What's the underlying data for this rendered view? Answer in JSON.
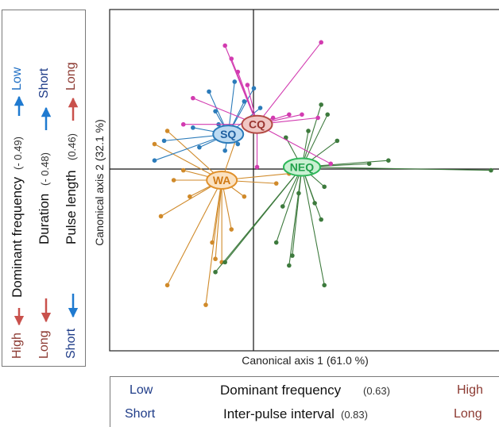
{
  "chart_data": {
    "type": "scatter",
    "title": "",
    "xlabel": "Canonical axis 1 (61.0 %)",
    "ylabel": "Canonical axis 2 (32.1 %)",
    "xlim": [
      -4.6,
      7.6
    ],
    "ylim": [
      -5.9,
      4.5
    ],
    "grid": false,
    "reference_lines": {
      "x": 0,
      "y": 0
    },
    "colors": {
      "SQ": "#2b7bba",
      "CQ": "#d23bb0",
      "WA": "#d08a2a",
      "NEQ": "#3d7a3d"
    },
    "series": [
      {
        "name": "SQ",
        "centroid": [
          -0.9,
          0.7
        ],
        "points": [
          [
            -0.7,
            2.3
          ],
          [
            -1.5,
            2.0
          ],
          [
            -0.4,
            1.7
          ],
          [
            -0.1,
            2.1
          ],
          [
            -1.3,
            1.4
          ],
          [
            -2.0,
            0.9
          ],
          [
            -2.9,
            0.5
          ],
          [
            -3.2,
            -0.1
          ],
          [
            -1.0,
            0.2
          ],
          [
            -0.6,
            0.4
          ],
          [
            -1.2,
            1.0
          ],
          [
            0.1,
            1.5
          ],
          [
            -1.8,
            0.3
          ]
        ]
      },
      {
        "name": "CQ",
        "centroid": [
          0.0,
          1.0
        ],
        "points": [
          [
            -1.0,
            3.4
          ],
          [
            -0.8,
            3.0
          ],
          [
            2.0,
            3.5
          ],
          [
            -0.6,
            2.6
          ],
          [
            -0.3,
            2.2
          ],
          [
            1.9,
            1.2
          ],
          [
            1.0,
            1.3
          ],
          [
            -2.0,
            1.8
          ],
          [
            -2.3,
            1.0
          ],
          [
            1.4,
            1.3
          ],
          [
            0.0,
            -0.3
          ],
          [
            2.3,
            -0.2
          ],
          [
            0.5,
            1.2
          ]
        ]
      },
      {
        "name": "WA",
        "centroid": [
          -1.1,
          -0.7
        ],
        "points": [
          [
            -2.8,
            0.8
          ],
          [
            -3.2,
            0.4
          ],
          [
            -2.3,
            -0.4
          ],
          [
            -2.6,
            -0.7
          ],
          [
            -2.1,
            -1.2
          ],
          [
            -3.0,
            -1.8
          ],
          [
            -2.8,
            -3.9
          ],
          [
            -1.6,
            -4.5
          ],
          [
            -1.3,
            -3.1
          ],
          [
            -1.1,
            -3.2
          ],
          [
            -1.4,
            -2.6
          ],
          [
            -0.8,
            -2.2
          ],
          [
            -0.4,
            -1.2
          ],
          [
            0.6,
            -0.8
          ],
          [
            1.0,
            -0.5
          ],
          [
            -0.6,
            0.7
          ]
        ]
      },
      {
        "name": "NEQ",
        "centroid": [
          1.4,
          -0.3
        ],
        "points": [
          [
            2.0,
            1.6
          ],
          [
            2.2,
            1.3
          ],
          [
            3.5,
            -0.2
          ],
          [
            7.3,
            -0.4
          ],
          [
            4.1,
            -0.1
          ],
          [
            2.5,
            0.5
          ],
          [
            1.6,
            0.8
          ],
          [
            2.1,
            -0.9
          ],
          [
            1.8,
            -1.4
          ],
          [
            2.0,
            -1.9
          ],
          [
            1.3,
            -1.1
          ],
          [
            0.8,
            -1.5
          ],
          [
            0.6,
            -2.6
          ],
          [
            1.1,
            -3.0
          ],
          [
            1.0,
            -3.3
          ],
          [
            -1.3,
            -3.5
          ],
          [
            -1.0,
            -3.2
          ],
          [
            2.1,
            -3.9
          ],
          [
            0.9,
            0.6
          ],
          [
            1.2,
            -0.3
          ]
        ]
      }
    ]
  },
  "left_legend": {
    "rows": [
      {
        "name": "Dominant frequency",
        "coef": "(- 0.49)",
        "low_label": "High",
        "high_label": "Low",
        "low_color": "#8c3a32",
        "high_color": "#1f6fc4"
      },
      {
        "name": "Duration",
        "coef": "(- 0.48)",
        "low_label": "Long",
        "high_label": "Short",
        "low_color": "#8c3a32",
        "high_color": "#1f3c88"
      },
      {
        "name": "Pulse length",
        "coef": "(0.46)",
        "low_label": "Short",
        "high_label": "Long",
        "low_color": "#1f3c88",
        "high_color": "#8c3a32"
      }
    ]
  },
  "bottom_legend": {
    "rows": [
      {
        "name": "Dominant frequency",
        "coef": "(0.63)",
        "left_label": "Low",
        "right_label": "High"
      },
      {
        "name": "Inter-pulse interval",
        "coef": "(0.83)",
        "left_label": "Short",
        "right_label": "Long"
      }
    ]
  }
}
